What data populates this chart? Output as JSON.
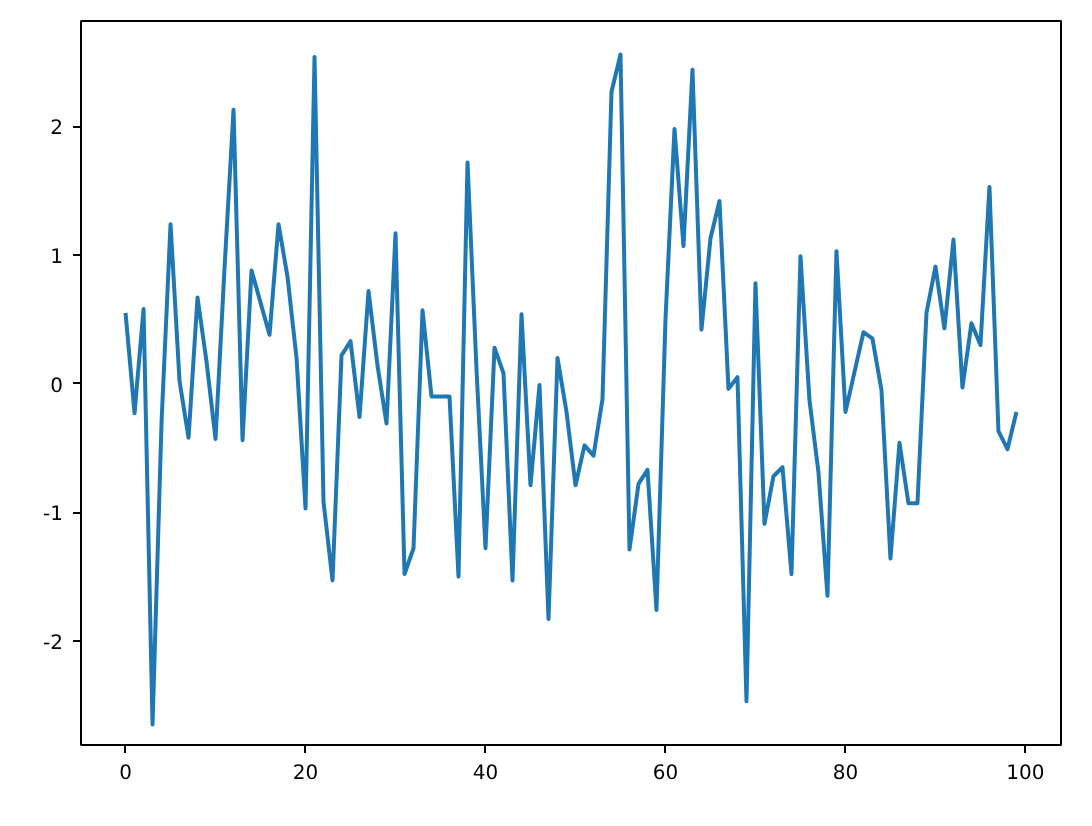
{
  "chart_data": {
    "type": "line",
    "x": [
      0,
      1,
      2,
      3,
      4,
      5,
      6,
      7,
      8,
      9,
      10,
      11,
      12,
      13,
      14,
      15,
      16,
      17,
      18,
      19,
      20,
      21,
      22,
      23,
      24,
      25,
      26,
      27,
      28,
      29,
      30,
      31,
      32,
      33,
      34,
      35,
      36,
      37,
      38,
      39,
      40,
      41,
      42,
      43,
      44,
      45,
      46,
      47,
      48,
      49,
      50,
      51,
      52,
      53,
      54,
      55,
      56,
      57,
      58,
      59,
      60,
      61,
      62,
      63,
      64,
      65,
      66,
      67,
      68,
      69,
      70,
      71,
      72,
      73,
      74,
      75,
      76,
      77,
      78,
      79,
      80,
      81,
      82,
      83,
      84,
      85,
      86,
      87,
      88,
      89,
      90,
      91,
      92,
      93,
      94,
      95,
      96,
      97,
      98,
      99
    ],
    "series": [
      {
        "color": "#1f77b4",
        "values": [
          0.55,
          -0.23,
          0.58,
          -2.65,
          -0.3,
          1.24,
          0.02,
          -0.42,
          0.67,
          0.17,
          -0.43,
          0.9,
          2.13,
          -0.44,
          0.88,
          0.63,
          0.38,
          1.24,
          0.83,
          0.2,
          -0.97,
          2.54,
          -0.92,
          -1.53,
          0.22,
          0.33,
          -0.26,
          0.72,
          0.14,
          -0.31,
          1.17,
          -1.48,
          -1.28,
          0.57,
          -0.1,
          -0.1,
          -0.1,
          -1.5,
          1.72,
          0.11,
          -1.28,
          0.28,
          0.08,
          -1.53,
          0.54,
          -0.79,
          -0.01,
          -1.83,
          0.2,
          -0.22,
          -0.79,
          -0.48,
          -0.56,
          -0.12,
          2.27,
          2.56,
          -1.29,
          -0.78,
          -0.67,
          -1.76,
          0.5,
          1.98,
          1.07,
          2.44,
          0.42,
          1.13,
          1.42,
          -0.04,
          0.05,
          -2.47,
          0.78,
          -1.09,
          -0.72,
          -0.65,
          -1.48,
          0.99,
          -0.13,
          -0.69,
          -1.65,
          1.03,
          -0.22,
          0.09,
          0.4,
          0.35,
          -0.05,
          -1.36,
          -0.46,
          -0.93,
          -0.93,
          0.55,
          0.91,
          0.43,
          1.12,
          -0.03,
          0.47,
          0.3,
          1.53,
          -0.37,
          -0.51,
          -0.22
        ]
      }
    ],
    "xlim": [
      -4.95,
      103.95
    ],
    "ylim": [
      -2.81,
      2.82
    ],
    "xticks": [
      0,
      20,
      40,
      60,
      80,
      100
    ],
    "yticks": [
      -2,
      -1,
      0,
      1,
      2
    ],
    "grid": false,
    "marker": "none",
    "line_style": "solid"
  }
}
